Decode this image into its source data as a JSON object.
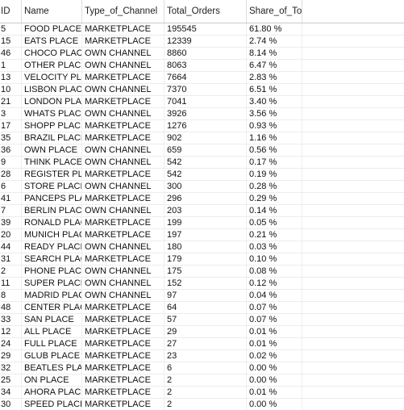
{
  "table": {
    "columns": [
      "ID",
      "Name",
      "Type_of_Channel",
      "Total_Orders",
      "Share_of_Total_Sales"
    ],
    "rows": [
      [
        "5",
        "FOOD PLACE",
        "MARKETPLACE",
        "195545",
        "61.80 %"
      ],
      [
        "15",
        "EATS PLACE",
        "MARKETPLACE",
        "12339",
        "2.74 %"
      ],
      [
        "46",
        "CHOCO PLACE",
        "OWN CHANNEL",
        "8860",
        "8.14 %"
      ],
      [
        "1",
        "OTHER PLACE",
        "OWN CHANNEL",
        "8063",
        "6.47 %"
      ],
      [
        "13",
        "VELOCITY PLACE",
        "MARKETPLACE",
        "7664",
        "2.83 %"
      ],
      [
        "10",
        "LISBON PLACE",
        "OWN CHANNEL",
        "7370",
        "6.51 %"
      ],
      [
        "21",
        "LONDON PLACE",
        "MARKETPLACE",
        "7041",
        "3.40 %"
      ],
      [
        "3",
        "WHATS PLACE",
        "OWN CHANNEL",
        "3926",
        "3.56 %"
      ],
      [
        "17",
        "SHOPP PLACE",
        "MARKETPLACE",
        "1276",
        "0.93 %"
      ],
      [
        "35",
        "BRAZIL PLACE",
        "MARKETPLACE",
        "902",
        "1.16 %"
      ],
      [
        "36",
        "OWN PLACE",
        "OWN CHANNEL",
        "659",
        "0.56 %"
      ],
      [
        "9",
        "THINK PLACE",
        "OWN CHANNEL",
        "542",
        "0.17 %"
      ],
      [
        "28",
        "REGISTER PLACE",
        "MARKETPLACE",
        "542",
        "0.19 %"
      ],
      [
        "6",
        "STORE PLACE",
        "OWN CHANNEL",
        "300",
        "0.28 %"
      ],
      [
        "41",
        "PANCEPS PLACE",
        "MARKETPLACE",
        "296",
        "0.29 %"
      ],
      [
        "7",
        "BERLIN PLACE",
        "OWN CHANNEL",
        "203",
        "0.14 %"
      ],
      [
        "39",
        "RONALD PLACE",
        "MARKETPLACE",
        "199",
        "0.05 %"
      ],
      [
        "20",
        "MUNICH PLACE",
        "MARKETPLACE",
        "197",
        "0.21 %"
      ],
      [
        "44",
        "READY PLACE",
        "OWN CHANNEL",
        "180",
        "0.03 %"
      ],
      [
        "31",
        "SEARCH PLACE",
        "MARKETPLACE",
        "179",
        "0.10 %"
      ],
      [
        "2",
        "PHONE PLACE",
        "OWN CHANNEL",
        "175",
        "0.08 %"
      ],
      [
        "11",
        "SUPER PLACE",
        "OWN CHANNEL",
        "152",
        "0.12 %"
      ],
      [
        "8",
        "MADRID PLACE",
        "OWN CHANNEL",
        "97",
        "0.04 %"
      ],
      [
        "48",
        "CENTER PLACE",
        "MARKETPLACE",
        "64",
        "0.07 %"
      ],
      [
        "33",
        "SAN PLACE",
        "MARKETPLACE",
        "57",
        "0.07 %"
      ],
      [
        "12",
        "ALL PLACE",
        "MARKETPLACE",
        "29",
        "0.01 %"
      ],
      [
        "24",
        "FULL PLACE",
        "MARKETPLACE",
        "27",
        "0.01 %"
      ],
      [
        "29",
        "GLUB PLACE",
        "MARKETPLACE",
        "23",
        "0.02 %"
      ],
      [
        "32",
        "BEATLES PLACE",
        "MARKETPLACE",
        "6",
        "0.00 %"
      ],
      [
        "25",
        "ON PLACE",
        "MARKETPLACE",
        "2",
        "0.00 %"
      ],
      [
        "34",
        "AHORA PLACE",
        "MARKETPLACE",
        "2",
        "0.01 %"
      ],
      [
        "30",
        "SPEED PLACE",
        "MARKETPLACE",
        "2",
        "0.00 %"
      ]
    ]
  }
}
